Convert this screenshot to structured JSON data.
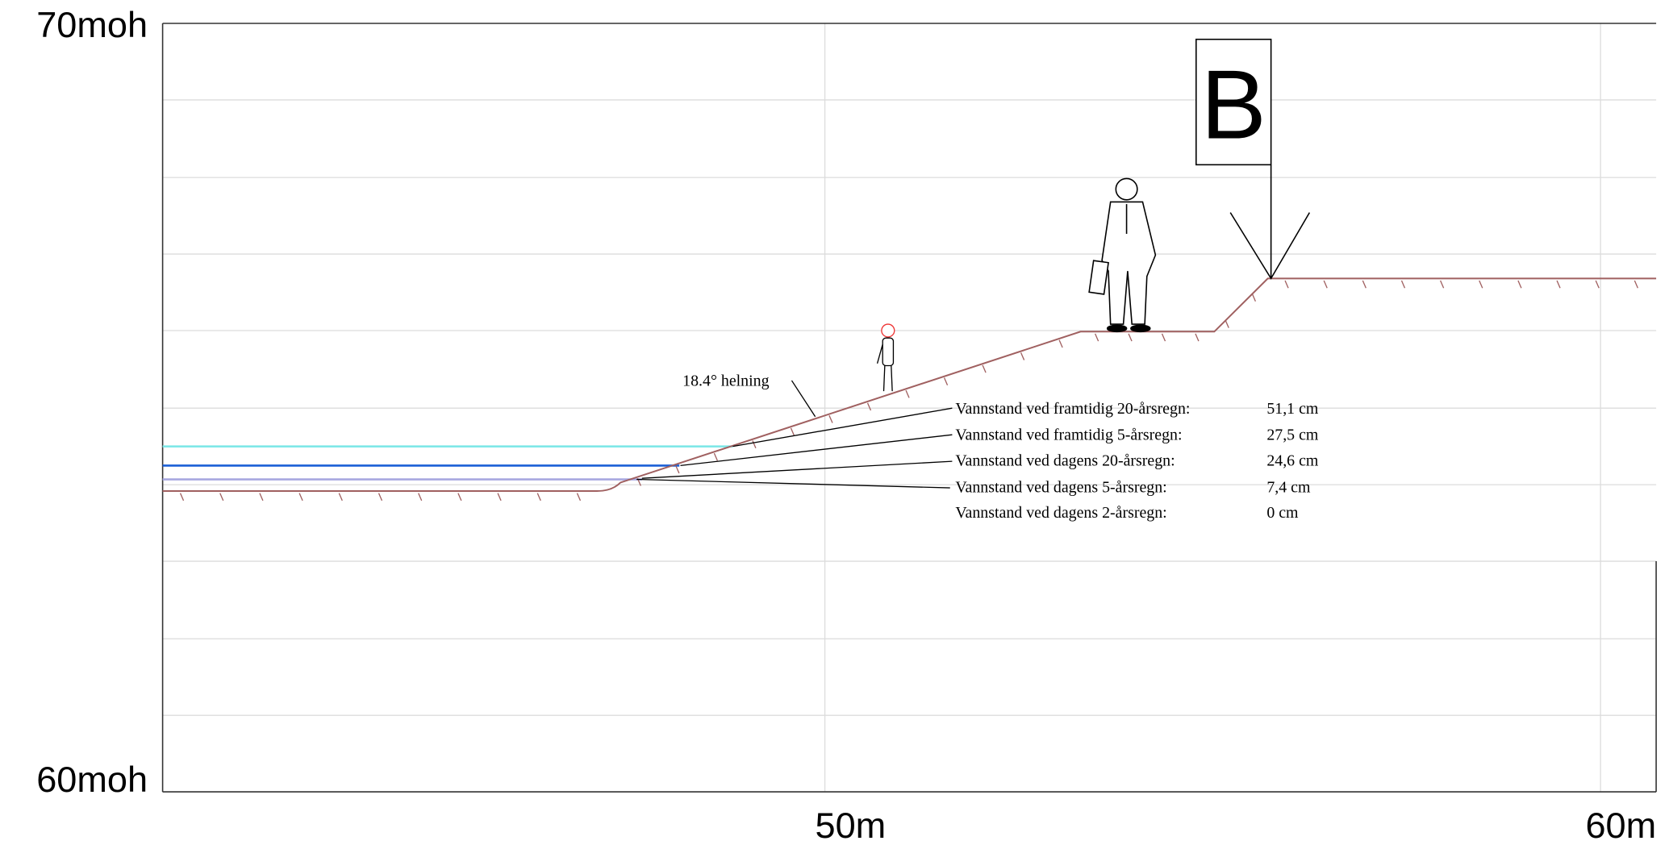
{
  "axis": {
    "y_top": "70moh",
    "y_bottom": "60moh",
    "x_labels": [
      "50m",
      "60m"
    ]
  },
  "marker": "B",
  "slope_label": "18.4° helning",
  "water_levels": [
    {
      "label": "Vannstand ved framtidig 20-årsregn:",
      "value": "51,1 cm"
    },
    {
      "label": "Vannstand ved framtidig 5-årsregn:",
      "value": "27,5 cm"
    },
    {
      "label": "Vannstand ved dagens 20-årsregn:",
      "value": "24,6 cm"
    },
    {
      "label": "Vannstand ved dagens 5-årsregn:",
      "value": "7,4 cm"
    },
    {
      "label": "Vannstand ved dagens 2-årsregn:",
      "value": "0 cm"
    }
  ]
}
